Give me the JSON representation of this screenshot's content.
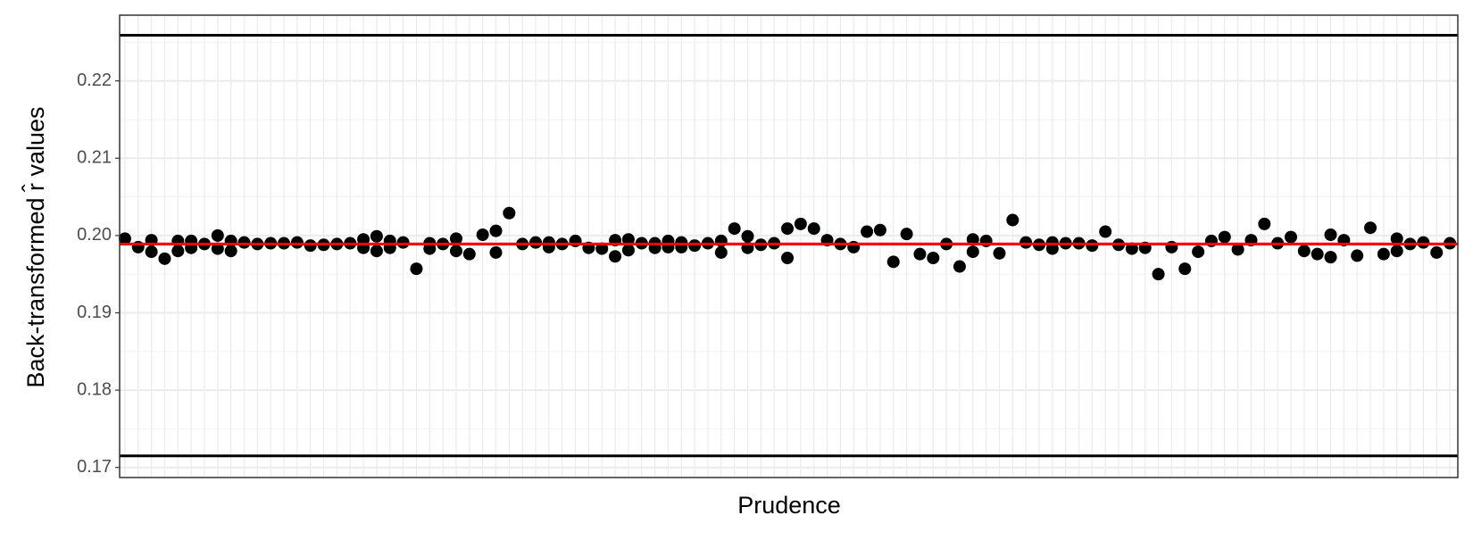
{
  "chart_data": {
    "type": "scatter",
    "x_label": "Prudence",
    "y_label": "Back-transformed r̂ values",
    "x": [
      1,
      2,
      3,
      3,
      4,
      5,
      5,
      6,
      6,
      7,
      8,
      8,
      9,
      9,
      10,
      11,
      12,
      13,
      14,
      15,
      16,
      17,
      18,
      19,
      19,
      20,
      20,
      21,
      21,
      22,
      23,
      24,
      24,
      25,
      26,
      26,
      27,
      28,
      29,
      29,
      30,
      31,
      32,
      33,
      33,
      34,
      35,
      36,
      37,
      38,
      38,
      39,
      39,
      40,
      41,
      41,
      42,
      42,
      43,
      43,
      44,
      45,
      46,
      46,
      47,
      48,
      48,
      49,
      50,
      51,
      51,
      52,
      53,
      54,
      55,
      56,
      57,
      58,
      59,
      60,
      61,
      62,
      63,
      64,
      65,
      65,
      66,
      67,
      68,
      69,
      70,
      71,
      71,
      72,
      73,
      74,
      75,
      76,
      77,
      78,
      79,
      80,
      81,
      82,
      83,
      84,
      85,
      86,
      87,
      88,
      89,
      90,
      91,
      92,
      92,
      93,
      94,
      95,
      96,
      97,
      97,
      98,
      99,
      100,
      101
    ],
    "values": [
      0.1996,
      0.1985,
      0.1994,
      0.1979,
      0.197,
      0.1993,
      0.198,
      0.1993,
      0.1984,
      0.1989,
      0.2,
      0.1983,
      0.1993,
      0.198,
      0.1991,
      0.1989,
      0.199,
      0.199,
      0.1991,
      0.1987,
      0.1988,
      0.1989,
      0.199,
      0.1995,
      0.1984,
      0.1999,
      0.198,
      0.1993,
      0.1984,
      0.1991,
      0.1957,
      0.199,
      0.1983,
      0.1989,
      0.1996,
      0.198,
      0.1976,
      0.2001,
      0.2006,
      0.1978,
      0.2029,
      0.1989,
      0.1991,
      0.1991,
      0.1985,
      0.1989,
      0.1993,
      0.1984,
      0.1983,
      0.1994,
      0.1973,
      0.1995,
      0.1981,
      0.199,
      0.199,
      0.1984,
      0.1993,
      0.1985,
      0.1991,
      0.1985,
      0.1987,
      0.199,
      0.1993,
      0.1978,
      0.2009,
      0.1999,
      0.1984,
      0.1988,
      0.199,
      0.2009,
      0.1971,
      0.2015,
      0.2009,
      0.1994,
      0.1989,
      0.1985,
      0.2005,
      0.2007,
      0.1966,
      0.2002,
      0.1976,
      0.1971,
      0.1989,
      0.196,
      0.1995,
      0.1979,
      0.1993,
      0.1977,
      0.202,
      0.1991,
      0.1988,
      0.1991,
      0.1983,
      0.199,
      0.199,
      0.1987,
      0.2005,
      0.1988,
      0.1983,
      0.1984,
      0.195,
      0.1985,
      0.1957,
      0.1979,
      0.1993,
      0.1998,
      0.1982,
      0.1994,
      0.2015,
      0.199,
      0.1998,
      0.198,
      0.1976,
      0.2001,
      0.1972,
      0.1994,
      0.1974,
      0.201,
      0.1976,
      0.1996,
      0.198,
      0.1989,
      0.1991,
      0.1978,
      0.199
    ],
    "color": "#000000",
    "xlim": [
      0.6,
      101.6
    ],
    "ylim": [
      0.1687,
      0.2285
    ],
    "yticks": [
      0.17,
      0.18,
      0.19,
      {
        "value": 0.2,
        "label": "0.20"
      },
      0.21,
      0.22
    ],
    "yminor": [
      0.175,
      0.185,
      0.195,
      0.205,
      0.215,
      0.225
    ],
    "hlines": [
      {
        "value": 0.2259,
        "color": "#000000"
      },
      {
        "value": 0.1715,
        "color": "#000000"
      },
      {
        "value": 0.1989,
        "color": "#ff0000"
      }
    ],
    "grid": true
  }
}
